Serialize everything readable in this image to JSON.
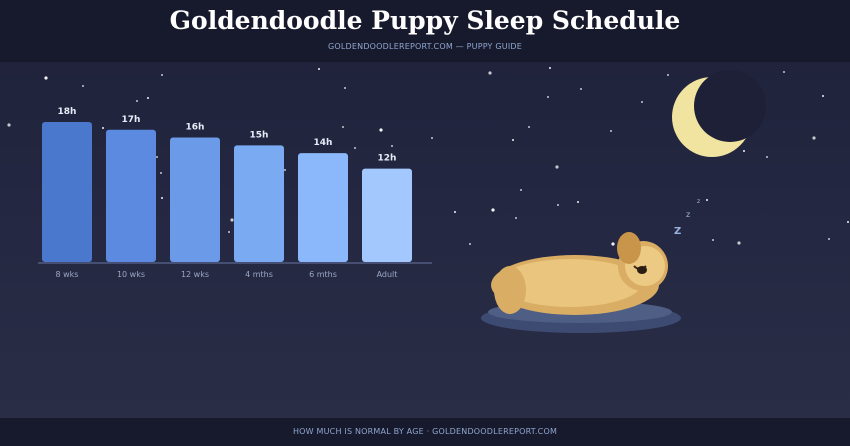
{
  "header": {
    "title": "Goldendoodle Puppy Sleep Schedule",
    "subtitle": "GOLDENDOODLEREPORT.COM — PUPPY GUIDE"
  },
  "footer": {
    "text": "HOW MUCH IS NORMAL BY AGE · GOLDENDOODLEREPORT.COM"
  },
  "illustration": {
    "moon_icon": "crescent-moon-icon",
    "dog_icon": "sleeping-puppy-icon",
    "snore_glyphs": [
      "z",
      "z",
      "Z"
    ]
  },
  "colors": {
    "bar_gradient": [
      "#4a78cc",
      "#5b8ae0",
      "#6b9ae8",
      "#7aabf2",
      "#8bb8fa",
      "#a3c8fd"
    ],
    "moon": "#f1e3a0",
    "background": "#22253a"
  },
  "chart_data": {
    "type": "bar",
    "categories": [
      "8 wks",
      "10 wks",
      "12 wks",
      "4 mths",
      "6 mths",
      "Adult"
    ],
    "values": [
      18,
      17,
      16,
      15,
      14,
      12
    ],
    "value_labels": [
      "18h",
      "17h",
      "16h",
      "15h",
      "14h",
      "12h"
    ],
    "title": "",
    "xlabel": "",
    "ylabel": "",
    "ylim": [
      0,
      18
    ],
    "grid": false
  }
}
